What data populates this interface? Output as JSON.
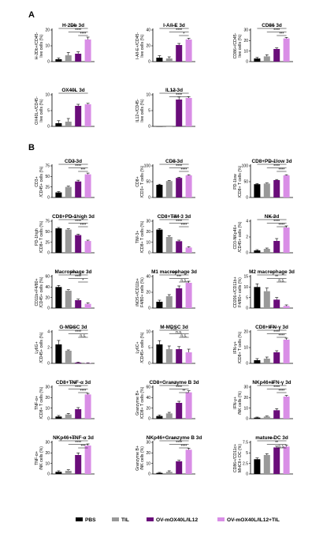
{
  "panels": {
    "a": "A",
    "b": "B"
  },
  "colors": {
    "PBS": "#000000",
    "TIL": "#999999",
    "OV-mOX40L/IL12": "#6a0d7a",
    "OV-mOX40L/IL12+TIL": "#d98ee6"
  },
  "legend": [
    {
      "label": "PBS",
      "color": "#000000"
    },
    {
      "label": "TIL",
      "color": "#999999"
    },
    {
      "label": "OV-mOX40L/IL12",
      "color": "#6a0d7a"
    },
    {
      "label": "OV-mOX40L/IL12+TIL",
      "color": "#d98ee6"
    }
  ],
  "chart_data": [
    {
      "type": "bar",
      "title": "H-2Db 3d",
      "ylabel_lines": [
        "H-2Db+/CD45-",
        "live cells (%)"
      ],
      "categories": [
        "PBS",
        "TIL",
        "OV-mOX40L/IL12",
        "OV-mOX40L/IL12+TIL"
      ],
      "values": [
        1.5,
        4,
        5,
        14
      ],
      "errors": [
        0.8,
        1.8,
        1.2,
        1.5
      ],
      "sig": [
        "****",
        "****",
        "****"
      ]
    },
    {
      "type": "bar",
      "title": "I-A/I-E 3d",
      "ylabel_lines": [
        "I-A/I-E+/CD45-",
        "live cells (%)"
      ],
      "categories": [
        "PBS",
        "TIL",
        "OV-mOX40L/IL12",
        "OV-mOX40L/IL12+TIL"
      ],
      "values": [
        5,
        4,
        21,
        28
      ],
      "errors": [
        2.5,
        2,
        2,
        1.5
      ],
      "sig": [
        "****",
        "****",
        "*"
      ]
    },
    {
      "type": "bar",
      "title": "CD86 3d",
      "ylabel_lines": [
        "CD86+/CD45-",
        "live cells (%)"
      ],
      "categories": [
        "PBS",
        "TIL",
        "OV-mOX40L/IL12",
        "OV-mOX40L/IL12+TIL"
      ],
      "values": [
        3,
        5,
        12,
        22
      ],
      "errors": [
        1,
        1.5,
        1,
        1
      ],
      "sig": [
        "****",
        "****",
        "***"
      ]
    },
    {
      "type": "bar",
      "title": "OX40L 3d",
      "ylabel_lines": [
        "OX40L+/CD45-",
        "live cells (%)"
      ],
      "categories": [
        "PBS",
        "TIL",
        "OV-mOX40L/IL12",
        "OV-mOX40L/IL12+TIL"
      ],
      "values": [
        1,
        1.5,
        6.5,
        7
      ],
      "errors": [
        0.8,
        1,
        0.5,
        0.3
      ],
      "sig": [
        "****"
      ]
    },
    {
      "type": "bar",
      "title": "IL12 3d",
      "ylabel_lines": [
        "IL12+/CD45-",
        "live cells (%)"
      ],
      "categories": [
        "PBS",
        "TIL",
        "OV-mOX40L/IL12",
        "OV-mOX40L/IL12+TIL"
      ],
      "values": [
        0,
        0,
        8.5,
        9
      ],
      "errors": [
        0,
        0,
        0.8,
        0.4
      ],
      "sig": [
        "****",
        "****"
      ]
    },
    {
      "type": "bar",
      "title": "CD3 3d",
      "ylabel_lines": [
        "CD3+",
        "/CD45+ cells (%)"
      ],
      "categories": [
        "PBS",
        "TIL",
        "OV-mOX40L/IL12",
        "OV-mOX40L/IL12+TIL"
      ],
      "values": [
        12,
        25,
        38,
        55
      ],
      "errors": [
        2,
        2,
        3,
        3
      ],
      "sig": [
        "****",
        "****",
        "***"
      ]
    },
    {
      "type": "bar",
      "title": "CD8 3d",
      "ylabel_lines": [
        "CD8+",
        "/CD3+ T cells (%)"
      ],
      "categories": [
        "PBS",
        "TIL",
        "OV-mOX40L/IL12",
        "OV-mOX40L/IL12+TIL"
      ],
      "values": [
        40,
        52,
        62,
        70
      ],
      "errors": [
        2,
        2,
        2,
        2
      ],
      "sig": [
        "****",
        "****",
        "****"
      ]
    },
    {
      "type": "bar",
      "title": "CD8+PD-1low 3d",
      "ylabel_lines": [
        "PD-1low",
        "/CD8+ T cells (%)"
      ],
      "categories": [
        "PBS",
        "TIL",
        "OV-mOX40L/IL12",
        "OV-mOX40L/IL12+TIL"
      ],
      "values": [
        42,
        44,
        55,
        70
      ],
      "errors": [
        2,
        2,
        2,
        2
      ],
      "sig": [
        "****",
        "****",
        "****"
      ]
    },
    {
      "type": "bar",
      "title": "CD8+PD-1high 3d",
      "ylabel_lines": [
        "PD-1high",
        "/CD8+ T cells (%)"
      ],
      "categories": [
        "PBS",
        "TIL",
        "OV-mOX40L/IL12",
        "OV-mOX40L/IL12+TIL"
      ],
      "values": [
        58,
        55,
        42,
        28
      ],
      "errors": [
        2,
        2,
        2,
        2
      ],
      "sig": [
        "****",
        "****",
        "****"
      ]
    },
    {
      "type": "bar",
      "title": "CD8+TIM-3 3d",
      "ylabel_lines": [
        "TIM-3+",
        "/CD8+ T cells (%)"
      ],
      "categories": [
        "PBS",
        "TIL",
        "OV-mOX40L/IL12",
        "OV-mOX40L/IL12+TIL"
      ],
      "values": [
        22,
        15,
        11,
        5
      ],
      "errors": [
        1,
        1,
        1,
        0.8
      ],
      "sig": [
        "****",
        "****",
        "****"
      ]
    },
    {
      "type": "bar",
      "title": "NK 3d",
      "ylabel_lines": [
        "CD3-NKp46+",
        "/CD45+ cells (%)"
      ],
      "categories": [
        "PBS",
        "TIL",
        "OV-mOX40L/IL12",
        "OV-mOX40L/IL12+TIL"
      ],
      "values": [
        0.3,
        0.5,
        1.5,
        3.2
      ],
      "errors": [
        0.1,
        0.1,
        0.3,
        0.2
      ],
      "sig": [
        "****",
        "****",
        "****"
      ]
    },
    {
      "type": "bar",
      "title": "Macrophage 3d",
      "ylabel_lines": [
        "CD11b+F4/80+",
        "/CD45+ cells (%)"
      ],
      "categories": [
        "PBS",
        "TIL",
        "OV-mOX40L/IL12",
        "OV-mOX40L/IL12+TIL"
      ],
      "values": [
        40,
        33,
        15,
        8
      ],
      "errors": [
        3,
        2,
        2,
        2
      ],
      "sig": [
        "****",
        "****",
        "*"
      ]
    },
    {
      "type": "bar",
      "title": "M1 macrophage 3d",
      "ylabel_lines": [
        "iNOS+/CD11b+",
        "F4/80+ cells (%)"
      ],
      "categories": [
        "PBS",
        "TIL",
        "OV-mOX40L/IL12",
        "OV-mOX40L/IL12+TIL"
      ],
      "values": [
        8,
        15,
        25,
        32
      ],
      "errors": [
        2,
        2,
        3,
        2
      ],
      "sig": [
        "****",
        "***",
        "n.s."
      ]
    },
    {
      "type": "bar",
      "title": "M2 macrophage 3d",
      "ylabel_lines": [
        "CD206+/CD11b+",
        "F4/80+ cells (%)"
      ],
      "categories": [
        "PBS",
        "TIL",
        "OV-mOX40L/IL12",
        "OV-mOX40L/IL12+TIL"
      ],
      "values": [
        10,
        8,
        4,
        1
      ],
      "errors": [
        1.5,
        1.5,
        1,
        0.5
      ],
      "sig": [
        "***",
        "**",
        "n.s."
      ]
    },
    {
      "type": "bar",
      "title": "G-MDSC 3d",
      "ylabel_lines": [
        "Ly6G+",
        "/CD45+ cells (%)"
      ],
      "categories": [
        "PBS",
        "TIL",
        "OV-mOX40L/IL12",
        "OV-mOX40L/IL12+TIL"
      ],
      "values": [
        2.4,
        1.6,
        0.1,
        0.05
      ],
      "errors": [
        0.5,
        0.1,
        0.05,
        0.03
      ],
      "sig": [
        "****",
        "****",
        "n.s."
      ]
    },
    {
      "type": "bar",
      "title": "M-MDSC 3d",
      "ylabel_lines": [
        "Ly6C+",
        "/CD45+ cells (%)"
      ],
      "categories": [
        "PBS",
        "TIL",
        "OV-mOX40L/IL12",
        "OV-mOX40L/IL12+TIL"
      ],
      "values": [
        6,
        4.5,
        4.5,
        3.5
      ],
      "errors": [
        1.2,
        1,
        0.8,
        1
      ],
      "sig": [
        "n.s.",
        "n.s.",
        "n.s."
      ]
    },
    {
      "type": "bar",
      "title": "CD8+IFN-γ 3d",
      "ylabel_lines": [
        "IFN-γ+",
        "/CD8+ T cells (%)"
      ],
      "categories": [
        "PBS",
        "TIL",
        "OV-mOX40L/IL12",
        "OV-mOX40L/IL12+TIL"
      ],
      "values": [
        2,
        3,
        7,
        15
      ],
      "errors": [
        1,
        1,
        1,
        1
      ],
      "sig": [
        "****",
        "****",
        "****"
      ]
    },
    {
      "type": "bar",
      "title": "CD8+TNF-α 3d",
      "ylabel_lines": [
        "TNF-α+",
        "/CD8+ T cells (%)"
      ],
      "categories": [
        "PBS",
        "TIL",
        "OV-mOX40L/IL12",
        "OV-mOX40L/IL12+TIL"
      ],
      "values": [
        2,
        4,
        9,
        23
      ],
      "errors": [
        1,
        1,
        1.5,
        1
      ],
      "sig": [
        "****",
        "****",
        "****"
      ]
    },
    {
      "type": "bar",
      "title": "CD8+Granzyme B 3d",
      "ylabel_lines": [
        "Granzyme B+",
        "/CD8+ T cells (%)"
      ],
      "categories": [
        "PBS",
        "TIL",
        "OV-mOX40L/IL12",
        "OV-mOX40L/IL12+TIL"
      ],
      "values": [
        5,
        10,
        30,
        50
      ],
      "errors": [
        2,
        2,
        3,
        3
      ],
      "sig": [
        "****",
        "****",
        "**"
      ]
    },
    {
      "type": "bar",
      "title": "NKp46+IFN-γ 3d",
      "ylabel_lines": [
        "IFN-γ+",
        "/NK cells (%)"
      ],
      "categories": [
        "PBS",
        "TIL",
        "OV-mOX40L/IL12",
        "OV-mOX40L/IL12+TIL"
      ],
      "values": [
        1,
        2,
        8,
        21
      ],
      "errors": [
        0.5,
        0.5,
        1.5,
        1
      ],
      "sig": [
        "****",
        "****",
        "****"
      ]
    },
    {
      "type": "bar",
      "title": "NKp46+TNF-α 3d",
      "ylabel_lines": [
        "TNF-α+",
        "/NK cells (%)"
      ],
      "categories": [
        "PBS",
        "TIL",
        "OV-mOX40L/IL12",
        "OV-mOX40L/IL12+TIL"
      ],
      "values": [
        2,
        3,
        18,
        27
      ],
      "errors": [
        1,
        1,
        2,
        1.5
      ],
      "sig": [
        "****",
        "****",
        "***"
      ]
    },
    {
      "type": "bar",
      "title": "NKp46+Granzyme B 3d",
      "ylabel_lines": [
        "Granzyme B+",
        "/NK cells (%)"
      ],
      "categories": [
        "PBS",
        "TIL",
        "OV-mOX40L/IL12",
        "OV-mOX40L/IL12+TIL"
      ],
      "values": [
        1,
        2,
        12,
        23
      ],
      "errors": [
        0.5,
        1,
        1,
        1.5
      ],
      "sig": [
        "****",
        "****",
        "****"
      ]
    },
    {
      "type": "bar",
      "title": "mature DC 3d",
      "ylabel_lines": [
        "CD86+/CD11c+",
        "MHCII+ DC (%)"
      ],
      "categories": [
        "PBS",
        "TIL",
        "OV-mOX40L/IL12",
        "OV-mOX40L/IL12+TIL"
      ],
      "values": [
        3.5,
        4.5,
        6.3,
        6.5
      ],
      "errors": [
        0.3,
        0.3,
        0.3,
        0.3
      ],
      "sig": [
        "****",
        "**",
        "n.s."
      ]
    }
  ]
}
